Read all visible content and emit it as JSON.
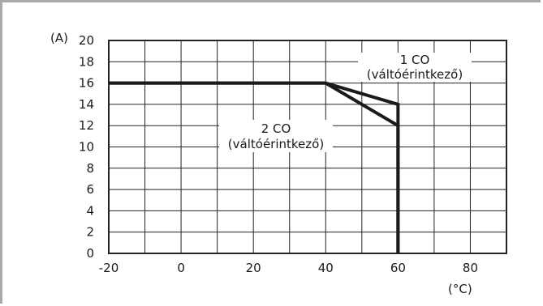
{
  "chart_data": {
    "type": "line",
    "y_unit": "(A)",
    "x_unit": "(°C)",
    "xlim": [
      -20,
      90
    ],
    "ylim": [
      0,
      20
    ],
    "x_ticks": [
      -20,
      0,
      20,
      40,
      60,
      80
    ],
    "y_ticks": [
      0,
      2,
      4,
      6,
      8,
      10,
      12,
      14,
      16,
      18,
      20
    ],
    "grid": true,
    "series": [
      {
        "x": [
          -20,
          40,
          60,
          60
        ],
        "y": [
          16,
          16,
          14,
          0
        ]
      },
      {
        "x": [
          -20,
          40,
          60,
          60
        ],
        "y": [
          16,
          16,
          12,
          0
        ]
      }
    ],
    "annotations": [
      {
        "line1": "1 CO",
        "line2": "(váltóérintkező)"
      },
      {
        "line1": "2 CO",
        "line2": "(váltóérintkező)"
      }
    ],
    "colors": {
      "line": "#1a1a1a",
      "grid": "#222222",
      "frame": "#a9a9a9"
    }
  }
}
